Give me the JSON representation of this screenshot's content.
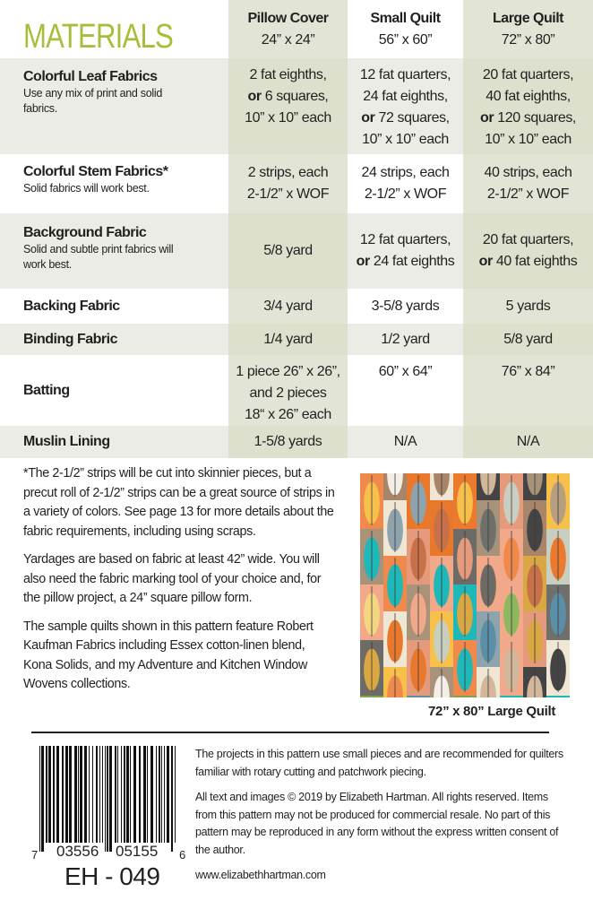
{
  "title": "MATERIALS",
  "columns": [
    {
      "name": "Pillow Cover",
      "size": "24” x 24”"
    },
    {
      "name": "Small Quilt",
      "size": "56” x 60”"
    },
    {
      "name": "Large Quilt",
      "size": "72” x 80”"
    }
  ],
  "rows": [
    {
      "label": "Colorful Leaf Fabrics",
      "note": "Use any mix of print and solid fabrics.",
      "values": [
        [
          "2 fat eighths,",
          "or|6 squares,",
          "10” x 10” each"
        ],
        [
          "12 fat quarters,",
          "24 fat eighths,",
          "or|72 squares,",
          "10” x 10” each"
        ],
        [
          "20 fat quarters,",
          "40 fat eighths,",
          "or|120 squares,",
          "10” x 10” each"
        ]
      ]
    },
    {
      "label": "Colorful Stem Fabrics*",
      "note": "Solid fabrics will work best.",
      "values": [
        [
          "2 strips, each",
          "2-1/2” x WOF"
        ],
        [
          "24 strips, each",
          "2-1/2” x WOF"
        ],
        [
          "40 strips, each",
          "2-1/2” x WOF"
        ]
      ]
    },
    {
      "label": "Background Fabric",
      "note": "Solid and subtle print fabrics will work best.",
      "values": [
        [
          "5/8 yard"
        ],
        [
          "12 fat quarters,",
          "or|24 fat eighths"
        ],
        [
          "20 fat quarters,",
          "or|40 fat eighths"
        ]
      ]
    },
    {
      "label": "Backing Fabric",
      "values": [
        [
          "3/4 yard"
        ],
        [
          "3-5/8 yards"
        ],
        [
          "5 yards"
        ]
      ]
    },
    {
      "label": "Binding Fabric",
      "values": [
        [
          "1/4 yard"
        ],
        [
          "1/2 yard"
        ],
        [
          "5/8 yard"
        ]
      ]
    },
    {
      "label": "Batting",
      "values": [
        [
          "1 piece 26” x 26”,",
          "and 2 pieces",
          "18“ x 26” each"
        ],
        [
          "60” x 64”"
        ],
        [
          "76” x 84”"
        ]
      ]
    },
    {
      "label": "Muslin Lining",
      "values": [
        [
          "1-5/8 yards"
        ],
        [
          "N/A"
        ],
        [
          "N/A"
        ]
      ]
    }
  ],
  "notes": [
    "*The 2-1/2” strips will be cut into skinnier pieces, but a precut roll of 2-1/2” strips can be a great source of strips in a variety of colors. See page 13 for more details about the fabric requirements, including using scraps.",
    "Yardages are based on fabric at least 42” wide. You will also need the fabric marking tool of your choice and, for the pillow project, a 24” square pillow form.",
    "The sample quilts shown in this pattern feature Robert Kaufman Fabrics including Essex cotton-linen blend, Kona Solids, and my Adventure and Kitchen Window Wovens collections."
  ],
  "quilt_caption": "72” x 80” Large Quilt",
  "quilt_colors": [
    "#b59f7f",
    "#8fa3ad",
    "#6e6a66",
    "#a8927a",
    "#e8782c",
    "#6f6f6b",
    "#1fb8b8",
    "#a88468",
    "#c9cfc0",
    "#ec7a2e",
    "#5b8fa8",
    "#f1a98a",
    "#f08a4c",
    "#f5d680",
    "#f7c04a",
    "#7fa548",
    "#d2b79a",
    "#efe6d4",
    "#2a5e8c",
    "#444",
    "#f3efe6",
    "#8db85f",
    "#d9a844",
    "#a83a2e",
    "#e59a7c",
    "#c87048"
  ],
  "colors": {
    "accent": "#a8bd3a",
    "shade": "#dde0cd",
    "shade_light": "#ebece5"
  },
  "barcode": {
    "left": "7",
    "group1": "03556",
    "group2": "05155",
    "right": "6"
  },
  "product_code": "EH - 049",
  "fine_print": [
    "The projects in this pattern use small pieces and are recommended for quilters familiar with rotary cutting and patchwork piecing.",
    "All text and images © 2019 by Elizabeth Hartman. All rights reserved. Items from this pattern may not be produced for commercial resale. No part of this pattern may be reproduced in any form without the express written consent of the author."
  ],
  "website": "www.elizabethhartman.com"
}
